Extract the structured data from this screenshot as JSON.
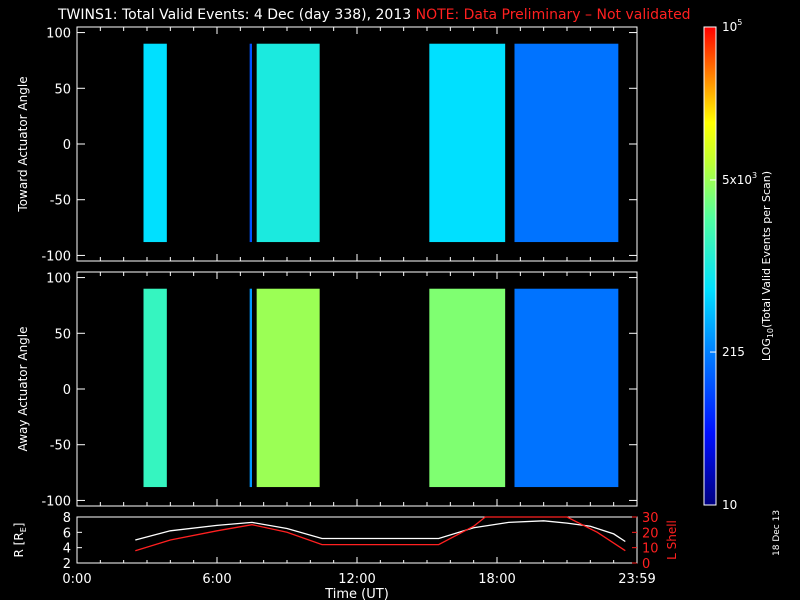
{
  "header": {
    "title": "TWINS1: Total Valid Events:  4 Dec (day 338), 2013",
    "warning": "NOTE: Data Preliminary – Not validated",
    "warning_color": "#ff2020"
  },
  "stamp": "18 Dec 13",
  "chart_data": [
    {
      "type": "heatmap",
      "panel": "toward",
      "ylabel": "Toward Actuator Angle",
      "ylim": [
        -105,
        105
      ],
      "yticks": [
        100,
        50,
        0,
        -50,
        -100
      ],
      "xlim": [
        0,
        24
      ],
      "angle_range": [
        -88,
        90
      ],
      "segments": [
        {
          "start": 2.85,
          "end": 3.85,
          "level": 0.45
        },
        {
          "start": 7.4,
          "end": 7.5,
          "level": 0.25
        },
        {
          "start": 7.7,
          "end": 10.4,
          "level": 0.5
        },
        {
          "start": 15.1,
          "end": 18.35,
          "level": 0.45
        },
        {
          "start": 18.75,
          "end": 23.2,
          "level": 0.3
        }
      ]
    },
    {
      "type": "heatmap",
      "panel": "away",
      "ylabel": "Away Actuator Angle",
      "ylim": [
        -105,
        105
      ],
      "yticks": [
        100,
        50,
        0,
        -50,
        -100
      ],
      "xlim": [
        0,
        24
      ],
      "angle_range": [
        -88,
        90
      ],
      "segments": [
        {
          "start": 2.85,
          "end": 3.85,
          "level": 0.55
        },
        {
          "start": 7.4,
          "end": 7.5,
          "level": 0.35
        },
        {
          "start": 7.7,
          "end": 10.4,
          "level": 0.68
        },
        {
          "start": 15.1,
          "end": 18.35,
          "level": 0.65
        },
        {
          "start": 18.75,
          "end": 23.2,
          "level": 0.3
        }
      ]
    },
    {
      "type": "line",
      "panel": "orbit",
      "ylabel_left": "R [R",
      "ylabel_left_sub": "E",
      "ylabel_right": "L Shell",
      "ylim_left": [
        2,
        8
      ],
      "yticks_left": [
        8,
        6,
        4,
        2
      ],
      "ylim_right": [
        0,
        30
      ],
      "yticks_right": [
        30,
        20,
        10,
        0
      ],
      "xlabel": "Time (UT)",
      "xlim": [
        0,
        24
      ],
      "xticks": [
        "0:00",
        "6:00",
        "12:00",
        "18:00",
        "23:59"
      ],
      "xtick_values": [
        0,
        6,
        12,
        18,
        24
      ],
      "series": [
        {
          "axis": "left",
          "color": "#ffffff",
          "x": [
            2.5,
            4,
            6,
            7.5,
            9,
            10.5,
            12,
            14,
            15.5,
            17,
            18.5,
            20,
            21,
            22,
            23,
            23.5
          ],
          "y": [
            5,
            6.2,
            6.9,
            7.3,
            6.5,
            5.2,
            5.2,
            5.2,
            5.2,
            6.6,
            7.3,
            7.5,
            7.2,
            6.8,
            5.8,
            4.8
          ]
        },
        {
          "axis": "right",
          "color": "#ff2020",
          "x": [
            2.5,
            4,
            6,
            7.5,
            9,
            10.5,
            12,
            14,
            15.5,
            17,
            17.5,
            20.5,
            21,
            22.3,
            23.5
          ],
          "y": [
            8,
            15,
            21,
            25,
            20,
            12,
            12,
            12,
            12,
            24,
            30,
            30,
            30,
            20,
            8
          ]
        }
      ]
    },
    {
      "type": "colorbar",
      "label": "LOG",
      "label_sub": "10",
      "label_rest": "(Total Valid Events per Scan)",
      "ticks": [
        {
          "text": "10",
          "frac": 0
        },
        {
          "text": "215",
          "frac": 0.32
        },
        {
          "text": "5x10",
          "sup": "3",
          "frac": 0.68
        },
        {
          "text": "10",
          "sup": "5",
          "frac": 1
        }
      ]
    }
  ]
}
